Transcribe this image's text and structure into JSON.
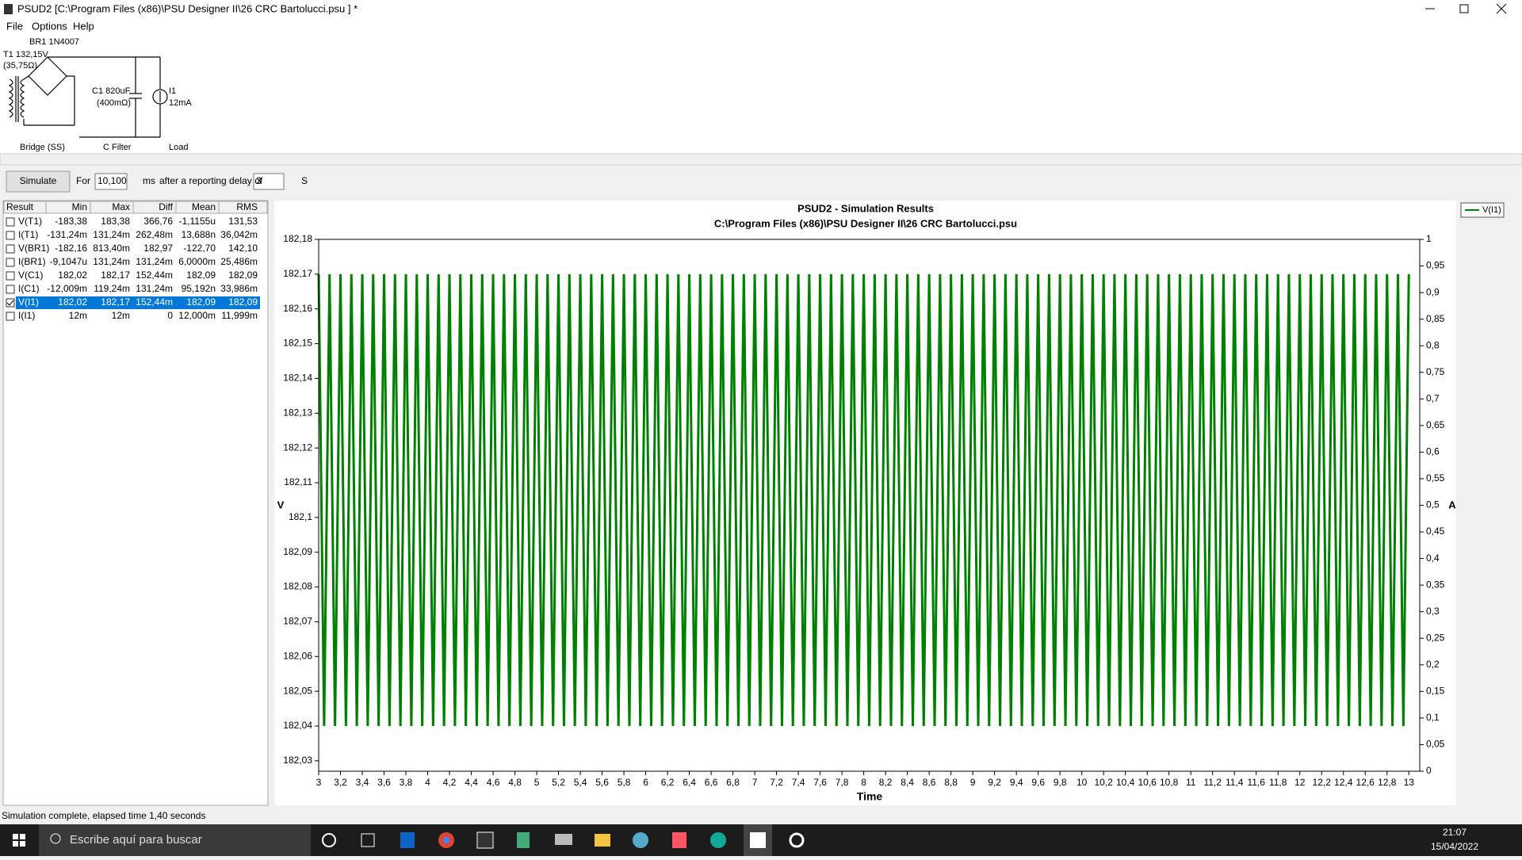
{
  "window": {
    "title": "PSUD2  [C:\\Program Files (x86)\\PSU Designer II\\26 CRC Bartolucci.psu ] *"
  },
  "menu": [
    "File",
    "Options",
    "Help"
  ],
  "schematic": {
    "labels": [
      "BR1 1N4007",
      "T1 132,15V",
      "(35,75Ω)",
      "C1 820uF",
      "(400mΩ)",
      "I1",
      "12mA",
      "Bridge (SS)",
      "C Filter",
      "Load"
    ]
  },
  "toolbar": {
    "button": "Simulate",
    "for_label": "For",
    "duration": "10,100",
    "unit": "ms",
    "delay_label": "after a reporting delay of",
    "delay": "3",
    "delay_unit": "S"
  },
  "table": {
    "header": [
      "Result",
      "Min",
      "Max",
      "Diff",
      "Mean",
      "RMS"
    ],
    "rows": [
      [
        "V(T1)",
        "-183,38",
        "183,38",
        "366,76",
        "-1,1155u",
        "131,53"
      ],
      [
        "I(T1)",
        "-131,24m",
        "131,24m",
        "262,48m",
        "13,688n",
        "36,042m"
      ],
      [
        "V(BR1)",
        "-182,16",
        "813,40m",
        "182,97",
        "-122,70",
        "142,10"
      ],
      [
        "I(BR1)",
        "-9,1047u",
        "131,24m",
        "131,24m",
        "6,0000m",
        "25,486m"
      ],
      [
        "V(C1)",
        "182,02",
        "182,17",
        "152,44m",
        "182,09",
        "182,09"
      ],
      [
        "I(C1)",
        "-12,009m",
        "119,24m",
        "131,24m",
        "95,192n",
        "33,986m"
      ],
      [
        "V(I1)",
        "182,02",
        "182,17",
        "152,44m",
        "182,09",
        "182,09"
      ],
      [
        "I(I1)",
        "12m",
        "12m",
        "0",
        "12,000m",
        "11,999m"
      ]
    ],
    "selected_row": 6
  },
  "chart": {
    "type": "line",
    "title": "PSUD2 - Simulation Results",
    "subtitle": "C:\\Program Files (x86)\\PSU Designer II\\26 CRC Bartolucci.psu",
    "x_label": "Time",
    "y_label": "V",
    "y2_label": "A",
    "xlim": [
      3,
      13.1
    ],
    "ylim": [
      182.027,
      182.18
    ],
    "y2lim": [
      0,
      1
    ],
    "xticks": [
      3,
      {
        "value": 3.2,
        "label": "3,2"
      },
      {
        "value": 3.4,
        "label": "3,4"
      },
      {
        "value": 3.6,
        "label": "3,6"
      },
      {
        "value": 3.8,
        "label": "3,8"
      },
      4,
      {
        "value": 4.2,
        "label": "4,2"
      },
      {
        "value": 4.4,
        "label": "4,4"
      },
      {
        "value": 4.6,
        "label": "4,6"
      },
      {
        "value": 4.8,
        "label": "4,8"
      },
      5,
      {
        "value": 5.2,
        "label": "5,2"
      },
      {
        "value": 5.4,
        "label": "5,4"
      },
      {
        "value": 5.6,
        "label": "5,6"
      },
      {
        "value": 5.8,
        "label": "5,8"
      },
      6,
      {
        "value": 6.2,
        "label": "6,2"
      },
      {
        "value": 6.4,
        "label": "6,4"
      },
      {
        "value": 6.6,
        "label": "6,6"
      },
      {
        "value": 6.8,
        "label": "6,8"
      },
      7,
      {
        "value": 7.2,
        "label": "7,2"
      },
      {
        "value": 7.4,
        "label": "7,4"
      },
      {
        "value": 7.6,
        "label": "7,6"
      },
      {
        "value": 7.8,
        "label": "7,8"
      },
      8,
      {
        "value": 8.2,
        "label": "8,2"
      },
      {
        "value": 8.4,
        "label": "8,4"
      },
      {
        "value": 8.6,
        "label": "8,6"
      },
      {
        "value": 8.8,
        "label": "8,8"
      },
      9,
      {
        "value": 9.2,
        "label": "9,2"
      },
      {
        "value": 9.4,
        "label": "9,4"
      },
      {
        "value": 9.6,
        "label": "9,6"
      },
      {
        "value": 9.8,
        "label": "9,8"
      },
      10,
      {
        "value": 10.2,
        "label": "10,2"
      },
      {
        "value": 10.4,
        "label": "10,4"
      },
      {
        "value": 10.6,
        "label": "10,6"
      },
      {
        "value": 10.8,
        "label": "10,8"
      },
      11,
      {
        "value": 11.2,
        "label": "11,2"
      },
      {
        "value": 11.4,
        "label": "11,4"
      },
      {
        "value": 11.6,
        "label": "11,6"
      },
      {
        "value": 11.8,
        "label": "11,8"
      },
      12,
      {
        "value": 12.2,
        "label": "12,2"
      },
      {
        "value": 12.4,
        "label": "12,4"
      },
      {
        "value": 12.6,
        "label": "12,6"
      },
      {
        "value": 12.8,
        "label": "12,8"
      },
      13
    ],
    "yticks": [
      {
        "value": 182.03,
        "label": "182,03"
      },
      {
        "value": 182.04,
        "label": "182,04"
      },
      {
        "value": 182.05,
        "label": "182,05"
      },
      {
        "value": 182.06,
        "label": "182,06"
      },
      {
        "value": 182.07,
        "label": "182,07"
      },
      {
        "value": 182.08,
        "label": "182,08"
      },
      {
        "value": 182.09,
        "label": "182,09"
      },
      {
        "value": 182.1,
        "label": "182,1"
      },
      {
        "value": 182.11,
        "label": "182,11"
      },
      {
        "value": 182.12,
        "label": "182,12"
      },
      {
        "value": 182.13,
        "label": "182,13"
      },
      {
        "value": 182.14,
        "label": "182,14"
      },
      {
        "value": 182.15,
        "label": "182,15"
      },
      {
        "value": 182.16,
        "label": "182,16"
      },
      {
        "value": 182.17,
        "label": "182,17"
      },
      {
        "value": 182.18,
        "label": "182,18"
      }
    ],
    "y2ticks": [
      0,
      {
        "value": 0.05,
        "label": "0,05"
      },
      {
        "value": 0.1,
        "label": "0,1"
      },
      {
        "value": 0.15,
        "label": "0,15"
      },
      {
        "value": 0.2,
        "label": "0,2"
      },
      {
        "value": 0.25,
        "label": "0,25"
      },
      {
        "value": 0.3,
        "label": "0,3"
      },
      {
        "value": 0.35,
        "label": "0,35"
      },
      {
        "value": 0.4,
        "label": "0,4"
      },
      {
        "value": 0.45,
        "label": "0,45"
      },
      {
        "value": 0.5,
        "label": "0,5"
      },
      {
        "value": 0.55,
        "label": "0,55"
      },
      {
        "value": 0.6,
        "label": "0,6"
      },
      {
        "value": 0.65,
        "label": "0,65"
      },
      {
        "value": 0.7,
        "label": "0,7"
      },
      {
        "value": 0.75,
        "label": "0,75"
      },
      {
        "value": 0.8,
        "label": "0,8"
      },
      {
        "value": 0.85,
        "label": "0,85"
      },
      {
        "value": 0.9,
        "label": "0,9"
      },
      {
        "value": 0.95,
        "label": "0,95"
      },
      1
    ],
    "series": [
      {
        "name": "V(I1)",
        "color": "#008000",
        "x": [
          3,
          3.05,
          3.1,
          3.15,
          3.2,
          3.25,
          3.3,
          3.35,
          3.4,
          3.45,
          3.5,
          3.55,
          3.6,
          3.65,
          3.7,
          3.75,
          3.8,
          3.85,
          3.9,
          3.95,
          4,
          4.05,
          4.1,
          4.15,
          4.2,
          4.25,
          4.3,
          4.35,
          4.4,
          4.45,
          4.5,
          4.55,
          4.6,
          4.65,
          4.7,
          4.75,
          4.8,
          4.85,
          4.9,
          4.95,
          5,
          5.05,
          5.1,
          5.15,
          5.2,
          5.25,
          5.3,
          5.35,
          5.4,
          5.45,
          5.5,
          5.55,
          5.6,
          5.65,
          5.7,
          5.75,
          5.8,
          5.85,
          5.9,
          5.95,
          6,
          6.05,
          6.1,
          6.15,
          6.2,
          6.25,
          6.3,
          6.35,
          6.4,
          6.45,
          6.5,
          6.55,
          6.6,
          6.65,
          6.7,
          6.75,
          6.8,
          6.85,
          6.9,
          6.95,
          7,
          7.05,
          7.1,
          7.15,
          7.2,
          7.25,
          7.3,
          7.35,
          7.4,
          7.45,
          7.5,
          7.55,
          7.6,
          7.65,
          7.7,
          7.75,
          7.8,
          7.85,
          7.9,
          7.95,
          8,
          8.05,
          8.1,
          8.15,
          8.2,
          8.25,
          8.3,
          8.35,
          8.4,
          8.45,
          8.5,
          8.55,
          8.6,
          8.65,
          8.7,
          8.75,
          8.8,
          8.85,
          8.9,
          8.95,
          9,
          9.05,
          9.1,
          9.15,
          9.2,
          9.25,
          9.3,
          9.35,
          9.4,
          9.45,
          9.5,
          9.55,
          9.6,
          9.65,
          9.7,
          9.75,
          9.8,
          9.85,
          9.9,
          9.95,
          10,
          10.05,
          10.1,
          10.15,
          10.2,
          10.25,
          10.3,
          10.35,
          10.4,
          10.45,
          10.5,
          10.55,
          10.6,
          10.65,
          10.7,
          10.75,
          10.8,
          10.85,
          10.9,
          10.95,
          11,
          11.05,
          11.1,
          11.15,
          11.2,
          11.25,
          11.3,
          11.35,
          11.4,
          11.45,
          11.5,
          11.55,
          11.6,
          11.65,
          11.7,
          11.75,
          11.8,
          11.85,
          11.9,
          11.95,
          12,
          12.05,
          12.1,
          12.15,
          12.2,
          12.25,
          12.3,
          12.35,
          12.4,
          12.45,
          12.5,
          12.55,
          12.6,
          12.65,
          12.7,
          12.75,
          12.8,
          12.85,
          12.9,
          12.95,
          13
        ],
        "values": [
          182.17,
          182.04,
          182.17,
          182.04,
          182.17,
          182.04,
          182.17,
          182.04,
          182.17,
          182.04,
          182.17,
          182.04,
          182.17,
          182.04,
          182.17,
          182.04,
          182.17,
          182.04,
          182.17,
          182.04,
          182.17,
          182.04,
          182.17,
          182.04,
          182.17,
          182.04,
          182.17,
          182.04,
          182.17,
          182.04,
          182.17,
          182.04,
          182.17,
          182.04,
          182.17,
          182.04,
          182.17,
          182.04,
          182.17,
          182.04,
          182.17,
          182.04,
          182.17,
          182.04,
          182.17,
          182.04,
          182.17,
          182.04,
          182.17,
          182.04,
          182.17,
          182.04,
          182.17,
          182.04,
          182.17,
          182.04,
          182.17,
          182.04,
          182.17,
          182.04,
          182.17,
          182.04,
          182.17,
          182.04,
          182.17,
          182.04,
          182.17,
          182.04,
          182.17,
          182.04,
          182.17,
          182.04,
          182.17,
          182.04,
          182.17,
          182.04,
          182.17,
          182.04,
          182.17,
          182.04,
          182.17,
          182.04,
          182.17,
          182.04,
          182.17,
          182.04,
          182.17,
          182.04,
          182.17,
          182.04,
          182.17,
          182.04,
          182.17,
          182.04,
          182.17,
          182.04,
          182.17,
          182.04,
          182.17,
          182.04,
          182.17,
          182.04,
          182.17,
          182.04,
          182.17,
          182.04,
          182.17,
          182.04,
          182.17,
          182.04,
          182.17,
          182.04,
          182.17,
          182.04,
          182.17,
          182.04,
          182.17,
          182.04,
          182.17,
          182.04,
          182.17,
          182.04,
          182.17,
          182.04,
          182.17,
          182.04,
          182.17,
          182.04,
          182.17,
          182.04,
          182.17,
          182.04,
          182.17,
          182.04,
          182.17,
          182.04,
          182.17,
          182.04,
          182.17,
          182.04,
          182.17,
          182.04,
          182.17,
          182.04,
          182.17,
          182.04,
          182.17,
          182.04,
          182.17,
          182.04,
          182.17,
          182.04,
          182.17,
          182.04,
          182.17,
          182.04,
          182.17,
          182.04,
          182.17,
          182.04,
          182.17,
          182.04,
          182.17,
          182.04,
          182.17,
          182.04,
          182.17,
          182.04,
          182.17,
          182.04,
          182.17,
          182.04,
          182.17,
          182.04,
          182.17,
          182.04,
          182.17,
          182.04,
          182.17,
          182.04,
          182.17,
          182.04,
          182.17,
          182.04,
          182.17,
          182.04,
          182.17,
          182.04,
          182.17,
          182.04,
          182.17,
          182.04,
          182.17,
          182.04,
          182.17,
          182.04,
          182.17,
          182.04,
          182.17,
          182.04,
          182.17
        ]
      }
    ]
  },
  "status": "Simulation complete, elapsed time 1,40 seconds",
  "taskbar": {
    "search": "Escribe aquí para buscar",
    "time": "21:07",
    "date": "15/04/2022"
  }
}
